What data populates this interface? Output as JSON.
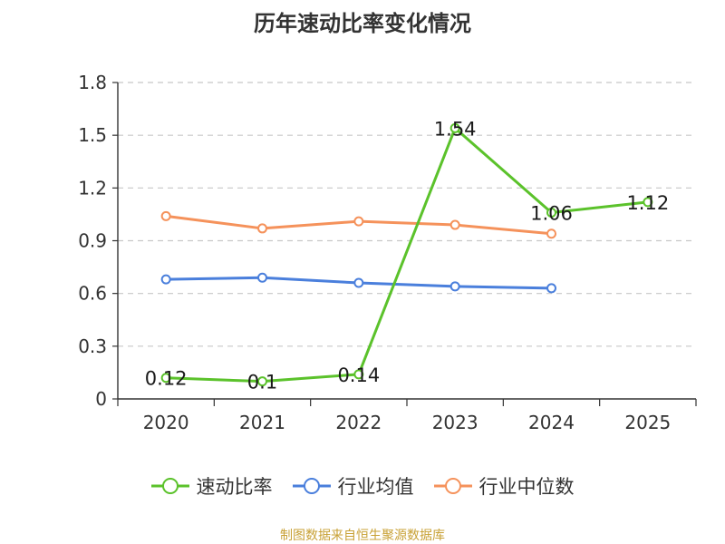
{
  "title": "历年速动比率变化情况",
  "source": "制图数据来自恒生聚源数据库",
  "colors": {
    "quick_ratio": "#5bc22b",
    "industry_avg": "#4a7fdc",
    "industry_median": "#f5925b"
  },
  "chart_data": {
    "type": "line",
    "title": "历年速动比率变化情况",
    "xlabel": "",
    "ylabel": "",
    "categories": [
      "2020",
      "2021",
      "2022",
      "2023",
      "2024",
      "2025"
    ],
    "ylim": [
      0,
      1.8
    ],
    "yticks": [
      "0",
      "0.3",
      "0.6",
      "0.9",
      "1.2",
      "1.5",
      "1.8"
    ],
    "grid": true,
    "legend_position": "bottom",
    "series": [
      {
        "name": "速动比率",
        "values": [
          0.12,
          0.1,
          0.14,
          1.54,
          1.06,
          1.12
        ],
        "labels": [
          "0.12",
          "0.1",
          "0.14",
          "1.54",
          "1.06",
          "1.12"
        ]
      },
      {
        "name": "行业均值",
        "values": [
          0.68,
          0.69,
          0.66,
          0.64,
          0.63,
          null
        ]
      },
      {
        "name": "行业中位数",
        "values": [
          1.04,
          0.97,
          1.01,
          0.99,
          0.94,
          null
        ]
      }
    ]
  }
}
